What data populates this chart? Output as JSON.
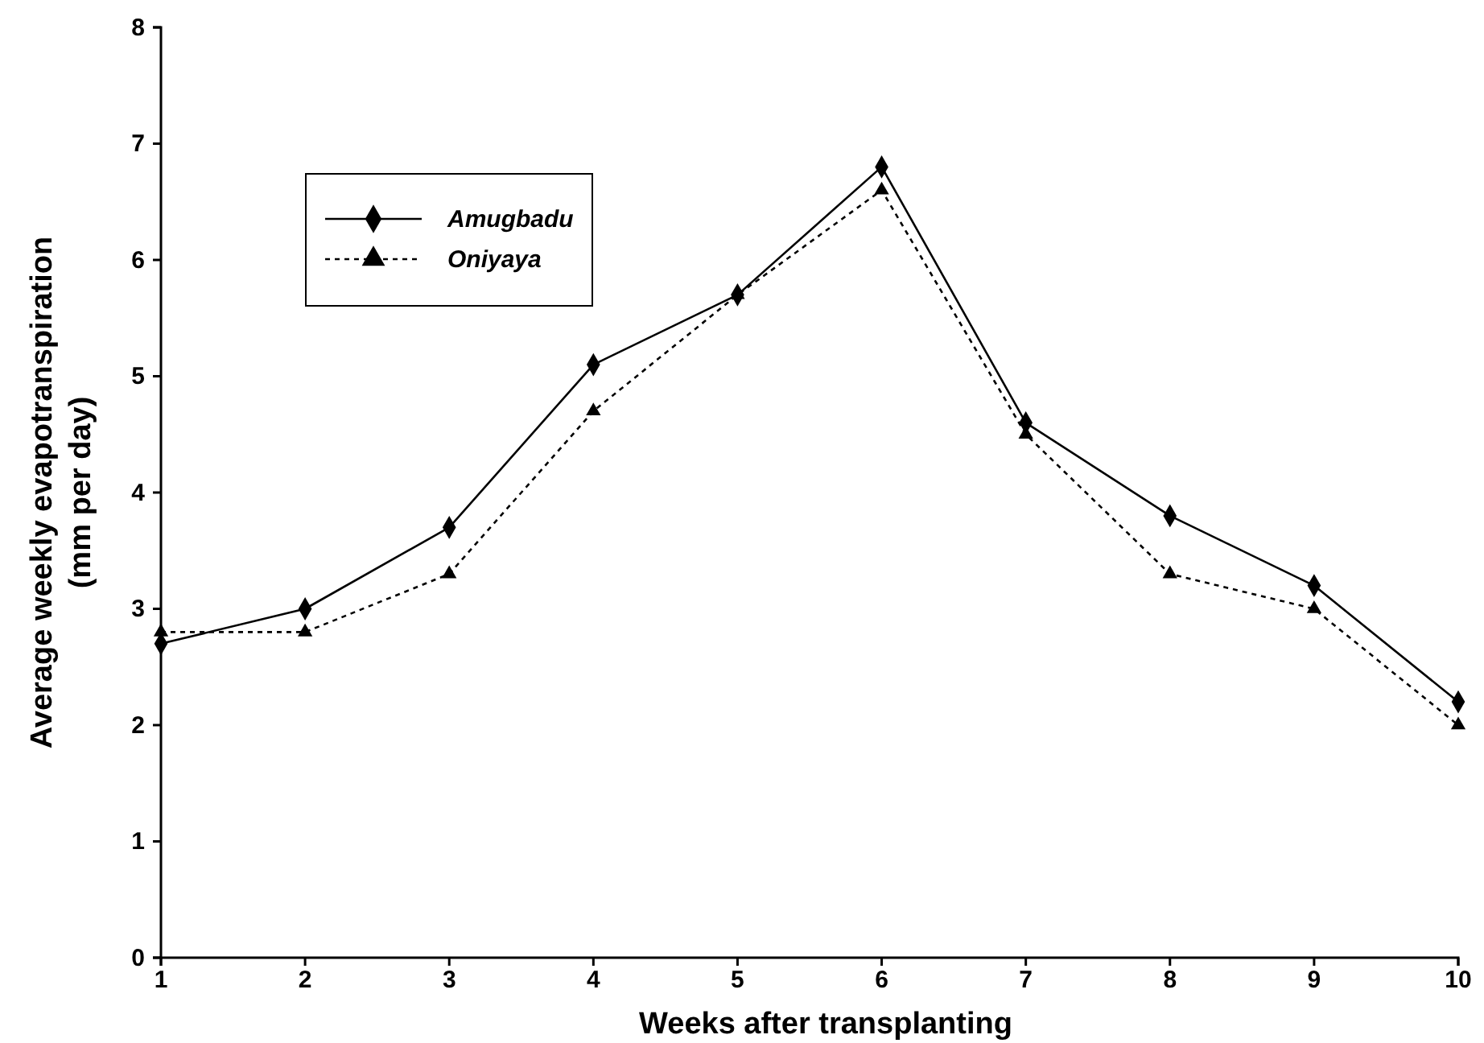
{
  "chart_data": {
    "type": "line",
    "xlabel": "Weeks after transplanting",
    "ylabel": "Average weekly evapotranspiration\n(mm per day)",
    "x": [
      1,
      2,
      3,
      4,
      5,
      6,
      7,
      8,
      9,
      10
    ],
    "xlim": [
      1,
      10
    ],
    "xticks": [
      1,
      2,
      3,
      4,
      5,
      6,
      7,
      8,
      9,
      10
    ],
    "ylim": [
      0,
      8
    ],
    "yticks": [
      0,
      1,
      2,
      3,
      4,
      5,
      6,
      7,
      8
    ],
    "grid": false,
    "legend": "top left",
    "series": [
      {
        "name": "Amugbadu",
        "color": "#000000",
        "marker": "diamond",
        "line_style": "solid",
        "values": [
          2.7,
          3.0,
          3.7,
          5.1,
          5.7,
          6.8,
          4.6,
          3.8,
          3.2,
          2.2
        ]
      },
      {
        "name": "Oniyaya",
        "color": "#000000",
        "marker": "triangle",
        "line_style": "dotted",
        "values": [
          2.8,
          2.8,
          3.3,
          4.7,
          5.7,
          6.6,
          4.5,
          3.3,
          3.0,
          2.0
        ]
      }
    ]
  }
}
